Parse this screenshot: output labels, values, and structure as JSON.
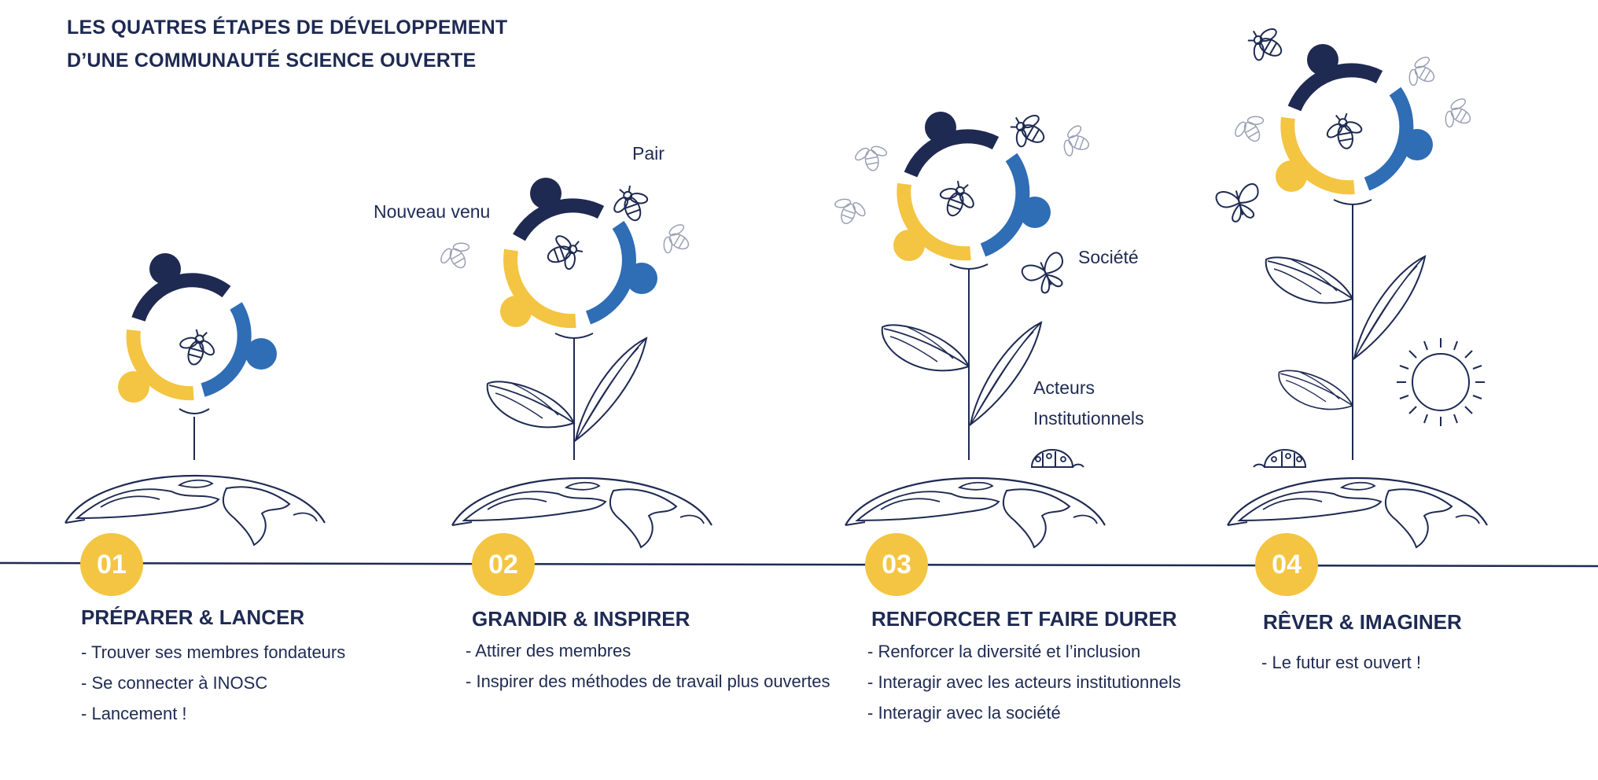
{
  "title": {
    "line1": "LES QUATRES ÉTAPES DE DÉVELOPPEMENT",
    "line2": "D’UNE COMMUNAUTÉ SCIENCE OUVERTE"
  },
  "colors": {
    "navy": "#1e2a52",
    "blue": "#2f6db5",
    "yellow": "#f4c542",
    "white": "#ffffff"
  },
  "labels": {
    "pair": "Pair",
    "nouveau_venu": "Nouveau venu",
    "societe": "Société",
    "acteurs_line1": "Acteurs",
    "acteurs_line2": "Institutionnels"
  },
  "stages": [
    {
      "number": "01",
      "title": "PRÉPARER & LANCER",
      "items": [
        "Trouver ses membres fondateurs",
        "Se connecter à INOSC",
        "Lancement !"
      ]
    },
    {
      "number": "02",
      "title": "GRANDIR & INSPIRER",
      "items": [
        "Attirer des membres",
        "Inspirer des méthodes de travail plus ouvertes"
      ]
    },
    {
      "number": "03",
      "title": "RENFORCER ET FAIRE DURER",
      "items": [
        "Renforcer la diversité et l’inclusion",
        "Interagir avec les acteurs institutionnels",
        "Interagir avec la société"
      ]
    },
    {
      "number": "04",
      "title": "RÊVER & IMAGINER",
      "items": [
        "Le futur est ouvert !"
      ]
    }
  ],
  "icons": [
    "people-ring-icon",
    "bee-icon",
    "butterfly-icon",
    "ladybug-icon",
    "sun-icon",
    "leaf-icon",
    "globe-icon"
  ]
}
